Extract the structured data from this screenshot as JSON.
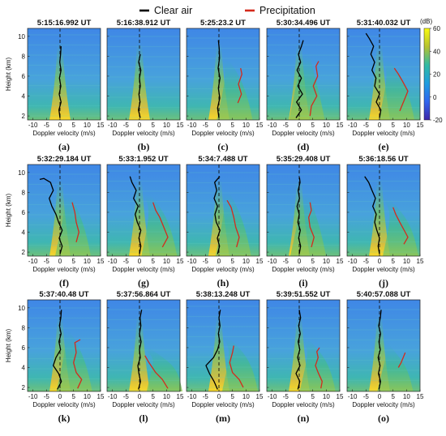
{
  "legend": {
    "entries": [
      {
        "name": "Clear air",
        "color": "#000000"
      },
      {
        "name": "Precipitation",
        "color": "#d42a1c"
      }
    ]
  },
  "colorbar": {
    "unit_label": "(dB)",
    "ticks": [
      60,
      40,
      20,
      0,
      -20
    ],
    "range": [
      -20,
      60
    ],
    "colormap": "parula"
  },
  "axes": {
    "xlabel": "Doppler velocity (m/s)",
    "ylabel": "Height (km)",
    "xticks": [
      -10,
      -5,
      0,
      5,
      10,
      15
    ],
    "yticks": [
      2,
      4,
      6,
      8,
      10
    ],
    "xlim": [
      -12,
      15
    ],
    "ylim": [
      1.6,
      10.8
    ],
    "zero_line": "dashed"
  },
  "chart_data": [
    {
      "type": "heatmap",
      "label": "(a)",
      "title": "5:15:16.992 UT",
      "precip": false,
      "clear": [
        [
          0,
          1.8
        ],
        [
          -0.4,
          2.6
        ],
        [
          0.4,
          3.4
        ],
        [
          -0.3,
          4.2
        ],
        [
          0.3,
          5
        ],
        [
          -0.2,
          5.8
        ],
        [
          0.4,
          6.6
        ],
        [
          -0.1,
          7.4
        ],
        [
          0.2,
          8.2
        ],
        [
          0.4,
          9
        ]
      ],
      "precip_curve": []
    },
    {
      "type": "heatmap",
      "label": "(b)",
      "title": "5:16:38.912 UT",
      "precip": false,
      "clear": [
        [
          0.3,
          1.8
        ],
        [
          -0.4,
          2.6
        ],
        [
          0.2,
          3.4
        ],
        [
          -0.2,
          4.2
        ],
        [
          0.3,
          5
        ],
        [
          0,
          5.8
        ],
        [
          0.5,
          6.6
        ],
        [
          -0.3,
          7.4
        ],
        [
          0.3,
          8.2
        ]
      ],
      "precip_curve": []
    },
    {
      "type": "heatmap",
      "label": "(c)",
      "title": "5:25:23.2 UT",
      "precip": true,
      "clear": [
        [
          0,
          1.8
        ],
        [
          -0.5,
          2.8
        ],
        [
          0.3,
          3.8
        ],
        [
          -0.2,
          4.8
        ],
        [
          0.4,
          5.8
        ],
        [
          -0.3,
          6.8
        ],
        [
          0.2,
          7.8
        ],
        [
          0.1,
          8.8
        ],
        [
          -0.2,
          9.6
        ]
      ],
      "precip_curve": [
        [
          7,
          3.3
        ],
        [
          8.3,
          4.2
        ],
        [
          7.2,
          5.2
        ],
        [
          8.5,
          6.2
        ],
        [
          8,
          6.8
        ]
      ]
    },
    {
      "type": "heatmap",
      "label": "(d)",
      "title": "5:30:34.496 UT",
      "precip": true,
      "clear": [
        [
          -1.2,
          1.8
        ],
        [
          0.8,
          2.6
        ],
        [
          -1,
          3.4
        ],
        [
          1.2,
          4.2
        ],
        [
          -0.5,
          5
        ],
        [
          0.8,
          5.8
        ],
        [
          -0.8,
          6.6
        ],
        [
          0.5,
          7.4
        ],
        [
          -0.3,
          8.2
        ],
        [
          0.8,
          9
        ],
        [
          1.5,
          9.6
        ]
      ],
      "precip_curve": [
        [
          4,
          2
        ],
        [
          4.5,
          3
        ],
        [
          6.5,
          4
        ],
        [
          5.2,
          5
        ],
        [
          6.8,
          6
        ],
        [
          6.2,
          7
        ],
        [
          7.2,
          7.5
        ]
      ]
    },
    {
      "type": "heatmap",
      "label": "(e)",
      "title": "5:31:40.032 UT",
      "precip": true,
      "clear": [
        [
          0,
          1.8
        ],
        [
          0.5,
          2.6
        ],
        [
          -1.2,
          3.4
        ],
        [
          0,
          4.2
        ],
        [
          -1.8,
          5
        ],
        [
          -1.3,
          5.8
        ],
        [
          -2.8,
          6.6
        ],
        [
          -1.8,
          7.4
        ],
        [
          -3.2,
          8.2
        ],
        [
          -2.2,
          9
        ],
        [
          -3.8,
          9.8
        ],
        [
          -5,
          10.3
        ]
      ],
      "precip_curve": [
        [
          7.5,
          2.5
        ],
        [
          9,
          3.5
        ],
        [
          10.5,
          4.5
        ],
        [
          8.5,
          5.5
        ],
        [
          7,
          6.2
        ],
        [
          5.5,
          6.8
        ]
      ]
    },
    {
      "type": "heatmap",
      "label": "(f)",
      "title": "5:32:29.184 UT",
      "precip": true,
      "clear": [
        [
          0,
          1.8
        ],
        [
          0.8,
          2.6
        ],
        [
          -0.3,
          3.4
        ],
        [
          0.8,
          4.2
        ],
        [
          -0.5,
          5
        ],
        [
          -1.5,
          5.8
        ],
        [
          -3,
          6.6
        ],
        [
          -4,
          7.4
        ],
        [
          -2.5,
          8.2
        ],
        [
          -3.5,
          9
        ],
        [
          -6,
          9.4
        ],
        [
          -7.5,
          9.3
        ]
      ],
      "precip_curve": [
        [
          6,
          3
        ],
        [
          7,
          4
        ],
        [
          6,
          5
        ],
        [
          5.5,
          6
        ],
        [
          4.5,
          7
        ]
      ]
    },
    {
      "type": "heatmap",
      "label": "(g)",
      "title": "5:33:1.952 UT",
      "precip": true,
      "clear": [
        [
          0,
          1.8
        ],
        [
          0.5,
          2.6
        ],
        [
          -0.2,
          3.4
        ],
        [
          0.5,
          4.2
        ],
        [
          -0.8,
          5
        ],
        [
          -1.6,
          5.8
        ],
        [
          -0.5,
          6.6
        ],
        [
          -2.2,
          7.4
        ],
        [
          -1.2,
          8.2
        ],
        [
          -2.8,
          9
        ],
        [
          -3.5,
          9.6
        ]
      ],
      "precip_curve": [
        [
          8.5,
          2.5
        ],
        [
          10.5,
          3.5
        ],
        [
          9,
          4.5
        ],
        [
          7.5,
          5.5
        ],
        [
          6,
          6.2
        ],
        [
          5,
          7
        ]
      ]
    },
    {
      "type": "heatmap",
      "label": "(h)",
      "title": "5:34:7.488 UT",
      "precip": true,
      "clear": [
        [
          -0.5,
          1.8
        ],
        [
          0.2,
          2.6
        ],
        [
          -0.6,
          3.4
        ],
        [
          0.4,
          4.2
        ],
        [
          -1,
          5
        ],
        [
          -1.5,
          5.8
        ],
        [
          -0.5,
          6.6
        ],
        [
          -1.8,
          7.4
        ],
        [
          -0.8,
          8.2
        ],
        [
          -1.6,
          9
        ],
        [
          0.3,
          9.6
        ]
      ],
      "precip_curve": [
        [
          6.5,
          2.5
        ],
        [
          7.5,
          3.5
        ],
        [
          6.2,
          4.5
        ],
        [
          5.5,
          5.5
        ],
        [
          4.5,
          6.5
        ],
        [
          3,
          7.2
        ]
      ]
    },
    {
      "type": "heatmap",
      "label": "(i)",
      "title": "5:35:29.408 UT",
      "precip": true,
      "clear": [
        [
          0,
          1.8
        ],
        [
          0.5,
          2.6
        ],
        [
          -0.2,
          3.4
        ],
        [
          0.4,
          4.2
        ],
        [
          -0.5,
          5
        ],
        [
          0,
          5.8
        ],
        [
          -0.8,
          6.6
        ],
        [
          0.1,
          7.4
        ],
        [
          -0.4,
          8.2
        ],
        [
          0.3,
          9
        ],
        [
          0.1,
          9.5
        ]
      ],
      "precip_curve": [
        [
          4.5,
          2.5
        ],
        [
          5.5,
          3.5
        ],
        [
          4,
          4.5
        ],
        [
          3.5,
          5.5
        ],
        [
          4.5,
          6.2
        ],
        [
          4,
          7
        ]
      ]
    },
    {
      "type": "heatmap",
      "label": "(j)",
      "title": "5:36:18.56 UT",
      "precip": true,
      "clear": [
        [
          0,
          1.8
        ],
        [
          -0.5,
          2.6
        ],
        [
          0,
          3.4
        ],
        [
          -1,
          4.2
        ],
        [
          -1.8,
          5
        ],
        [
          -1.2,
          5.8
        ],
        [
          -2.5,
          6.6
        ],
        [
          -1.5,
          7.4
        ],
        [
          -2.8,
          8.2
        ],
        [
          -4,
          9
        ],
        [
          -5.5,
          9.6
        ]
      ],
      "precip_curve": [
        [
          9,
          2.8
        ],
        [
          10.5,
          3.5
        ],
        [
          9.5,
          4
        ],
        [
          7.5,
          5
        ],
        [
          6,
          5.8
        ],
        [
          5,
          6.5
        ]
      ]
    },
    {
      "type": "heatmap",
      "label": "(k)",
      "title": "5:37:40.48 UT",
      "precip": true,
      "clear": [
        [
          -1,
          1.8
        ],
        [
          0.5,
          2.6
        ],
        [
          -0.5,
          3.4
        ],
        [
          -2.5,
          4.2
        ],
        [
          -1.5,
          5
        ],
        [
          0.2,
          5.8
        ],
        [
          -0.4,
          6.6
        ],
        [
          0.4,
          7.4
        ],
        [
          -0.2,
          8.2
        ],
        [
          0.3,
          9
        ],
        [
          0.5,
          9.8
        ]
      ],
      "precip_curve": [
        [
          6.5,
          1.9
        ],
        [
          8,
          2.8
        ],
        [
          6,
          3.5
        ],
        [
          5,
          4.5
        ],
        [
          6,
          5.5
        ],
        [
          5.5,
          6.5
        ],
        [
          7.5,
          6.8
        ]
      ]
    },
    {
      "type": "heatmap",
      "label": "(l)",
      "title": "5:37:56.864 UT",
      "precip": true,
      "clear": [
        [
          -0.4,
          1.8
        ],
        [
          0.4,
          2.6
        ],
        [
          -0.2,
          3.4
        ],
        [
          -0.6,
          4.2
        ],
        [
          0.3,
          5
        ],
        [
          0,
          5.8
        ],
        [
          0.6,
          6.6
        ],
        [
          0,
          7.4
        ],
        [
          0.5,
          8.2
        ],
        [
          0.2,
          9
        ],
        [
          0.8,
          9.8
        ]
      ],
      "precip_curve": [
        [
          10.5,
          1.9
        ],
        [
          8.5,
          2.8
        ],
        [
          6,
          3.5
        ],
        [
          3.5,
          4.5
        ],
        [
          2,
          5.2
        ]
      ]
    },
    {
      "type": "heatmap",
      "label": "(m)",
      "title": "5:38:13.248 UT",
      "precip": true,
      "clear": [
        [
          -0.5,
          1.8
        ],
        [
          -1.8,
          2.6
        ],
        [
          -3.5,
          3.4
        ],
        [
          -4.8,
          4.2
        ],
        [
          -2,
          5
        ],
        [
          -0.5,
          5.8
        ],
        [
          0.3,
          6.6
        ],
        [
          -0.2,
          7.4
        ],
        [
          0.4,
          8.2
        ],
        [
          0,
          9
        ],
        [
          0.5,
          9.8
        ]
      ],
      "precip_curve": [
        [
          9,
          2
        ],
        [
          7.5,
          2.8
        ],
        [
          5,
          3.5
        ],
        [
          4,
          4.5
        ],
        [
          5,
          5.5
        ],
        [
          5.5,
          6.2
        ]
      ]
    },
    {
      "type": "heatmap",
      "label": "(n)",
      "title": "5:39:51.552 UT",
      "precip": true,
      "clear": [
        [
          -0.5,
          1.8
        ],
        [
          0.2,
          2.6
        ],
        [
          -1.2,
          3.4
        ],
        [
          0.3,
          4.2
        ],
        [
          -0.6,
          5
        ],
        [
          0.2,
          5.8
        ],
        [
          -0.4,
          6.6
        ],
        [
          0.4,
          7.4
        ],
        [
          -0.2,
          8.2
        ],
        [
          0.5,
          9
        ],
        [
          0,
          9.8
        ]
      ],
      "precip_curve": [
        [
          8,
          1.9
        ],
        [
          8.5,
          2.6
        ],
        [
          7,
          3.5
        ],
        [
          6,
          4.2
        ],
        [
          7,
          5
        ],
        [
          6.5,
          5.6
        ],
        [
          7.5,
          6
        ]
      ]
    },
    {
      "type": "heatmap",
      "label": "(o)",
      "title": "5:40:57.088 UT",
      "precip": true,
      "clear": [
        [
          -0.2,
          1.8
        ],
        [
          0.4,
          2.6
        ],
        [
          -0.4,
          3.4
        ],
        [
          0.2,
          4.2
        ],
        [
          -0.5,
          5
        ],
        [
          0.3,
          5.8
        ],
        [
          -0.2,
          6.6
        ],
        [
          0.4,
          7.4
        ],
        [
          -0.3,
          8.2
        ],
        [
          0.3,
          9
        ],
        [
          0.6,
          9.8
        ]
      ],
      "precip_curve": [
        [
          7,
          4
        ],
        [
          8,
          4.5
        ],
        [
          9.5,
          5.5
        ]
      ]
    }
  ]
}
